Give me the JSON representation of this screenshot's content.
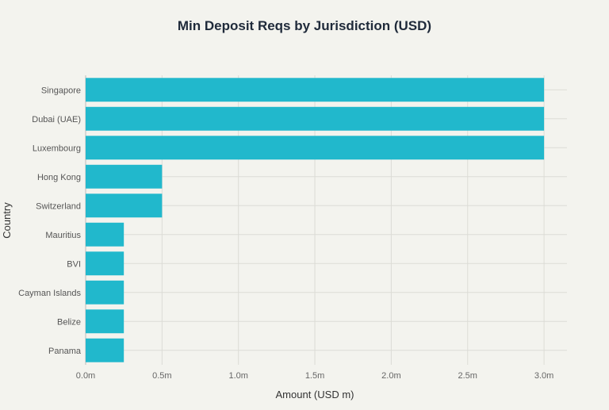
{
  "chart_data": {
    "type": "bar",
    "orientation": "horizontal",
    "title": "Min Deposit Reqs by Jurisdiction (USD)",
    "xlabel": "Amount (USD m)",
    "ylabel": "Country",
    "categories": [
      "Singapore",
      "Dubai (UAE)",
      "Luxembourg",
      "Hong Kong",
      "Switzerland",
      "Mauritius",
      "BVI",
      "Cayman Islands",
      "Belize",
      "Panama"
    ],
    "values": [
      3.0,
      3.0,
      3.0,
      0.5,
      0.5,
      0.25,
      0.25,
      0.25,
      0.25,
      0.25
    ],
    "xlim": [
      0,
      3.15
    ],
    "xticks": [
      0,
      0.5,
      1.0,
      1.5,
      2.0,
      2.5,
      3.0
    ],
    "xtick_labels": [
      "0.0m",
      "0.5m",
      "1.0m",
      "1.5m",
      "2.0m",
      "2.5m",
      "3.0m"
    ],
    "grid": true,
    "bar_color": "#21b8cc",
    "background": "#f3f3ee"
  }
}
